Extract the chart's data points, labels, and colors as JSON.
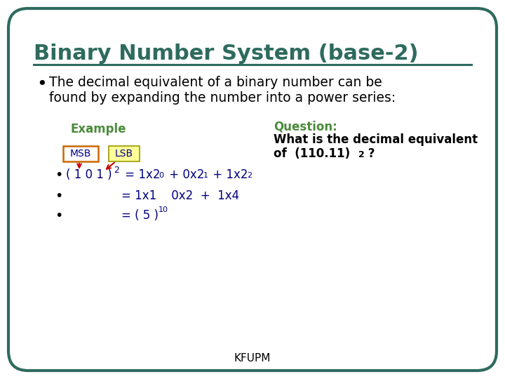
{
  "title": "Binary Number System (base-2)",
  "title_color": "#2E6B5E",
  "bullet_text_line1": "  The decimal equivalent of a binary number can be",
  "bullet_text_line2": "  found by expanding the number into a power series:",
  "example_label": "Example",
  "example_color": "#4B8B3B",
  "question_label": "Question:",
  "question_color": "#4B8B3B",
  "question_body1": "What is the decimal equivalent",
  "question_body2": "of  (110.11)",
  "footer": "KFUPM",
  "bg_color": "#FFFFFF",
  "border_color": "#2E6B5E",
  "msb_border_color": "#CC6600",
  "msb_fill_color": "#FFFFFF",
  "lsb_border_color": "#999900",
  "lsb_fill_color": "#FFFF99",
  "msb_text_color": "#00008B",
  "lsb_text_color": "#00008B",
  "arrow_color": "#CC0000",
  "formula_color": "#000080",
  "bullet_color": "#000000"
}
